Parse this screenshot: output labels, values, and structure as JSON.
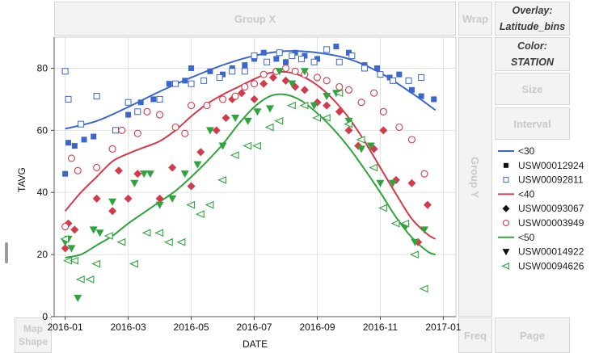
{
  "drop_zones": {
    "group_x": "Group X",
    "wrap": "Wrap",
    "overlay_label": "Overlay:",
    "overlay_value": "Latitude_bins",
    "color_label": "Color:",
    "color_value": "STATION",
    "size": "Size",
    "interval": "Interval",
    "group_y": "Group Y",
    "map_shape": "Map Shape",
    "freq": "Freq",
    "page": "Page"
  },
  "chart_data": {
    "type": "scatter",
    "xlabel": "DATE",
    "ylabel": "TAVG",
    "x_ticks": [
      "2016-01",
      "2016-03",
      "2016-05",
      "2016-07",
      "2016-09",
      "2016-11",
      "2017-01"
    ],
    "x_tick_positions": [
      0,
      2,
      4,
      6,
      8,
      10,
      12
    ],
    "y_ticks": [
      "0",
      "20",
      "40",
      "60",
      "80"
    ],
    "ylim": [
      0,
      90
    ],
    "xlim": [
      -0.35,
      12.4
    ],
    "grid": true,
    "colors": {
      "lt30": "#3b66cc",
      "lt40": "#d43a4b",
      "lt50": "#2ea43c"
    },
    "legend": [
      {
        "label": "<30",
        "kind": "line",
        "color": "#3b66cc"
      },
      {
        "label": "USW00012924",
        "kind": "filled-square",
        "color": "#3b66cc"
      },
      {
        "label": "USW00092811",
        "kind": "open-square",
        "color": "#3b66cc"
      },
      {
        "label": "<40",
        "kind": "line",
        "color": "#d43a4b"
      },
      {
        "label": "USW00093067",
        "kind": "filled-diamond",
        "color": "#d43a4b"
      },
      {
        "label": "USW00003949",
        "kind": "open-circle",
        "color": "#d43a4b"
      },
      {
        "label": "<50",
        "kind": "line",
        "color": "#2ea43c"
      },
      {
        "label": "USW00014922",
        "kind": "filled-triangle-down",
        "color": "#2ea43c"
      },
      {
        "label": "USW00094626",
        "kind": "open-triangle-left",
        "color": "#2ea43c"
      }
    ],
    "series": [
      {
        "name": "USW00012924",
        "marker": "filled-square",
        "color": "#3b66cc",
        "x": [
          0.0,
          0.1,
          0.3,
          0.6,
          0.9,
          1.6,
          2.0,
          2.4,
          2.8,
          3.3,
          3.8,
          4.0,
          4.6,
          5.0,
          5.3,
          5.7,
          6.0,
          6.3,
          6.7,
          7.0,
          7.3,
          7.6,
          8.0,
          8.3,
          8.6,
          9.0,
          9.5,
          9.9,
          10.3,
          10.6,
          11.0,
          11.3,
          11.7
        ],
        "y": [
          46,
          56,
          55,
          57,
          58,
          60,
          65,
          69,
          70,
          75,
          76,
          80,
          79,
          78,
          80,
          81,
          83,
          85,
          83,
          82,
          85,
          84,
          83,
          86,
          87,
          85,
          81,
          80,
          77,
          78,
          73,
          71,
          70
        ]
      },
      {
        "name": "USW00092811",
        "marker": "open-square",
        "color": "#3b66cc",
        "x": [
          0.0,
          0.1,
          0.5,
          1.0,
          1.6,
          2.0,
          2.3,
          3.0,
          3.5,
          4.0,
          4.4,
          4.9,
          5.3,
          5.7,
          6.0,
          6.4,
          6.8,
          7.2,
          7.5,
          7.9,
          8.3,
          8.7,
          9.1,
          9.5,
          10.0,
          10.4,
          10.9,
          11.3
        ],
        "y": [
          79,
          70,
          62,
          71,
          60,
          69,
          66,
          70,
          75,
          75,
          76,
          77,
          79,
          79,
          84,
          82,
          85,
          84,
          83,
          82,
          86,
          82,
          84,
          80,
          78,
          76,
          76,
          77
        ]
      },
      {
        "name": "USW00093067",
        "marker": "filled-diamond",
        "color": "#d43a4b",
        "x": [
          0.0,
          0.1,
          0.3,
          1.0,
          1.5,
          1.7,
          2.0,
          2.3,
          3.0,
          3.4,
          4.0,
          4.3,
          4.8,
          5.1,
          5.3,
          5.6,
          6.0,
          6.3,
          6.6,
          7.0,
          7.3,
          7.6,
          8.0,
          8.3,
          8.7,
          9.0,
          9.3,
          9.8,
          10.1,
          10.5,
          11.0,
          11.2,
          11.5
        ],
        "y": [
          22,
          30,
          28,
          38,
          34,
          47,
          38,
          46,
          38,
          48,
          42,
          53,
          60,
          64,
          70,
          72,
          70,
          75,
          77,
          76,
          74,
          73,
          69,
          68,
          66,
          60,
          55,
          54,
          60,
          44,
          43,
          24,
          36
        ]
      },
      {
        "name": "USW00003949",
        "marker": "open-circle",
        "color": "#d43a4b",
        "x": [
          0.0,
          0.2,
          0.4,
          1.0,
          1.5,
          1.8,
          2.3,
          2.6,
          3.0,
          3.5,
          3.8,
          4.0,
          4.5,
          5.0,
          5.4,
          5.7,
          6.0,
          6.3,
          6.7,
          7.0,
          7.3,
          7.6,
          8.0,
          8.3,
          8.7,
          9.0,
          9.4,
          9.8,
          10.1,
          10.6,
          11.0,
          11.4
        ],
        "y": [
          29,
          51,
          47,
          48,
          54,
          60,
          59,
          66,
          65,
          61,
          59,
          68,
          68,
          70,
          71,
          74,
          75,
          78,
          79,
          80,
          79,
          78,
          77,
          76,
          74,
          73,
          69,
          72,
          66,
          61,
          57,
          46
        ]
      },
      {
        "name": "USW00014922",
        "marker": "filled-triangle-down",
        "color": "#2ea43c",
        "x": [
          0.0,
          0.1,
          0.2,
          0.4,
          0.9,
          1.1,
          1.5,
          2.2,
          2.5,
          2.7,
          3.0,
          3.4,
          3.8,
          4.2,
          4.6,
          5.0,
          5.4,
          5.8,
          6.1,
          6.5,
          6.8,
          7.2,
          7.6,
          7.9,
          8.3,
          8.6,
          9.0,
          9.4,
          9.7,
          10.0,
          10.4,
          10.8,
          11.1,
          11.4
        ],
        "y": [
          24,
          25,
          22,
          6,
          28,
          27,
          37,
          43,
          46,
          46,
          36,
          38,
          46,
          49,
          60,
          55,
          64,
          63,
          66,
          67,
          79,
          75,
          79,
          68,
          71,
          72,
          63,
          54,
          55,
          43,
          43,
          29,
          24,
          28
        ]
      },
      {
        "name": "USW00094626",
        "marker": "open-triangle-left",
        "color": "#2ea43c",
        "x": [
          0.0,
          0.1,
          0.3,
          0.5,
          0.8,
          1.0,
          1.4,
          1.8,
          2.2,
          2.6,
          3.0,
          3.3,
          3.7,
          4.0,
          4.3,
          4.6,
          5.0,
          5.4,
          5.8,
          6.1,
          6.5,
          6.8,
          7.2,
          7.6,
          8.0,
          8.3,
          8.7,
          9.0,
          9.4,
          9.8,
          10.1,
          10.5,
          10.8,
          11.1,
          11.4
        ],
        "y": [
          25,
          18,
          18,
          12,
          12,
          17,
          26,
          24,
          17,
          27,
          27,
          24,
          24,
          36,
          33,
          36,
          44,
          52,
          55,
          55,
          61,
          63,
          68,
          68,
          64,
          64,
          72,
          62,
          57,
          48,
          35,
          30,
          30,
          20,
          9
        ]
      }
    ],
    "fit_lines": [
      {
        "name": "<30",
        "color": "#3b66cc",
        "x": [
          0,
          1,
          2,
          3,
          4,
          5,
          6,
          7,
          8,
          9,
          10,
          11,
          11.75
        ],
        "y": [
          60.5,
          63,
          67.5,
          72.5,
          77,
          81,
          84,
          85.5,
          85,
          83,
          78.5,
          72,
          66.5
        ]
      },
      {
        "name": "<40",
        "color": "#d43a4b",
        "x": [
          0,
          0.5,
          1,
          1.5,
          2,
          2.5,
          3,
          3.5,
          4,
          4.5,
          5,
          5.5,
          6,
          6.5,
          7,
          7.5,
          8,
          8.5,
          9,
          9.5,
          10,
          10.5,
          11,
          11.5,
          11.75
        ],
        "y": [
          34,
          40,
          45,
          50,
          52.5,
          54.5,
          56.5,
          60,
          64.5,
          68.5,
          71.5,
          74,
          76.5,
          78.5,
          78.8,
          77.5,
          74.5,
          70,
          64,
          56.5,
          48,
          39.5,
          31.5,
          26.5,
          25
        ]
      },
      {
        "name": "<50",
        "color": "#2ea43c",
        "x": [
          0,
          0.5,
          1,
          1.5,
          2,
          2.5,
          3,
          3.5,
          4,
          4.5,
          5,
          5.5,
          6,
          6.5,
          7,
          7.5,
          8,
          8.5,
          9,
          9.5,
          10,
          10.5,
          11,
          11.5,
          11.75
        ],
        "y": [
          19,
          20,
          23,
          26,
          30,
          33.5,
          37,
          40.5,
          45,
          50,
          55.5,
          62,
          67.5,
          71,
          71.5,
          69.5,
          65.5,
          60.5,
          54.5,
          47.5,
          40,
          32,
          25.5,
          21,
          20
        ]
      }
    ]
  }
}
